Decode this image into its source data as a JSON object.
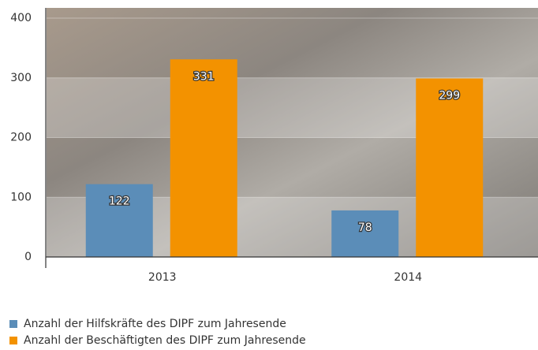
{
  "chart_data": {
    "type": "bar",
    "categories": [
      "2013",
      "2014"
    ],
    "series": [
      {
        "name": "Anzahl der Hilfskräfte des DIPF zum Jahresende",
        "color": "#5b8db8",
        "values": [
          122,
          78
        ]
      },
      {
        "name": "Anzahl der Beschäftigten des DIPF zum Jahresende",
        "color": "#f39200",
        "values": [
          331,
          299
        ]
      }
    ],
    "ylim": [
      0,
      400
    ],
    "yticks": [
      0,
      100,
      200,
      300,
      400
    ],
    "grid": true,
    "legend": "bottom-left"
  }
}
